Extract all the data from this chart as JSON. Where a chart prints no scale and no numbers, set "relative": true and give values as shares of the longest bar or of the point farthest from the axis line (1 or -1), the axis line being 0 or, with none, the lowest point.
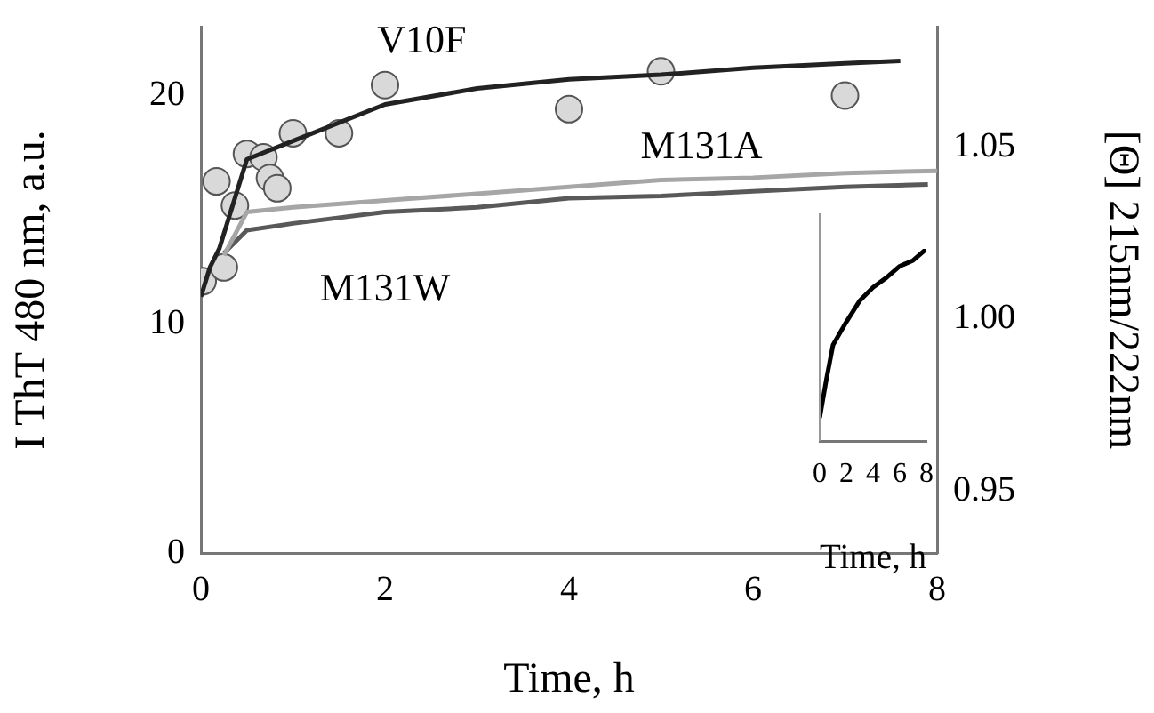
{
  "chart_data": [
    {
      "type": "line",
      "xlabel": "Time, h",
      "ylabel": "I ThT 480 nm, a.u.",
      "y2label": "[Θ] 215nm/222nm",
      "xlim": [
        0,
        8
      ],
      "xticks": [
        0,
        2,
        4,
        6,
        8
      ],
      "ylim": [
        0,
        23
      ],
      "yticks": [
        0,
        10,
        20
      ],
      "y2lim": [
        0.932,
        1.085
      ],
      "y2ticks": [
        0.95,
        {
          "value": 1.0,
          "label": "1.00"
        },
        1.05
      ],
      "grid": false,
      "legend": false,
      "line_style": "solid",
      "series": [
        {
          "name": "V10F",
          "color": "#222222",
          "marker": "none",
          "x": [
            0,
            0.1,
            0.2,
            0.4,
            0.5,
            1,
            2,
            3,
            4,
            5,
            6,
            7,
            7.6
          ],
          "values": [
            11.2,
            12.5,
            13.3,
            15.9,
            17.2,
            18.0,
            19.6,
            20.3,
            20.7,
            20.9,
            21.2,
            21.4,
            21.5
          ]
        },
        {
          "name": "M131A",
          "color": "#a6a6a6",
          "marker": "none",
          "x": [
            0.25,
            0.5,
            1,
            2,
            3,
            4,
            5,
            6,
            7,
            8
          ],
          "values": [
            13.0,
            14.9,
            15.1,
            15.4,
            15.7,
            16.0,
            16.3,
            16.4,
            16.6,
            16.7
          ]
        },
        {
          "name": "M131W",
          "color": "#595959",
          "marker": "none",
          "x": [
            0.25,
            0.5,
            1,
            2,
            3,
            4,
            5,
            6,
            7,
            7.9
          ],
          "values": [
            13.1,
            14.1,
            14.4,
            14.9,
            15.1,
            15.5,
            15.6,
            15.8,
            16.0,
            16.1
          ]
        },
        {
          "type": "scatter",
          "axis": "y2",
          "color": "#d9d9d9",
          "marker": "circle",
          "x": [
            0.02,
            0.17,
            0.25,
            0.37,
            0.5,
            0.68,
            0.75,
            0.83,
            1.0,
            1.5,
            2.0,
            4.0,
            5.0,
            7.0
          ],
          "values": [
            1.011,
            1.04,
            1.015,
            1.033,
            1.048,
            1.047,
            1.041,
            1.038,
            1.054,
            1.054,
            1.068,
            1.061,
            1.072,
            1.065
          ]
        }
      ]
    },
    {
      "type": "line",
      "relative": true,
      "xlabel": "Time, h",
      "xlim": [
        0,
        8
      ],
      "xticks": [
        0,
        2,
        4,
        6,
        8
      ],
      "grid": false,
      "legend": false,
      "tick_labels": "x",
      "line_style": "solid",
      "series": [
        {
          "color": "#000000",
          "marker": "none",
          "x": [
            0,
            0.5,
            1,
            2,
            3,
            4,
            5,
            6,
            7,
            8
          ],
          "values": [
            0.12,
            0.32,
            0.5,
            0.62,
            0.73,
            0.8,
            0.85,
            0.91,
            0.94,
            1
          ]
        }
      ]
    }
  ]
}
